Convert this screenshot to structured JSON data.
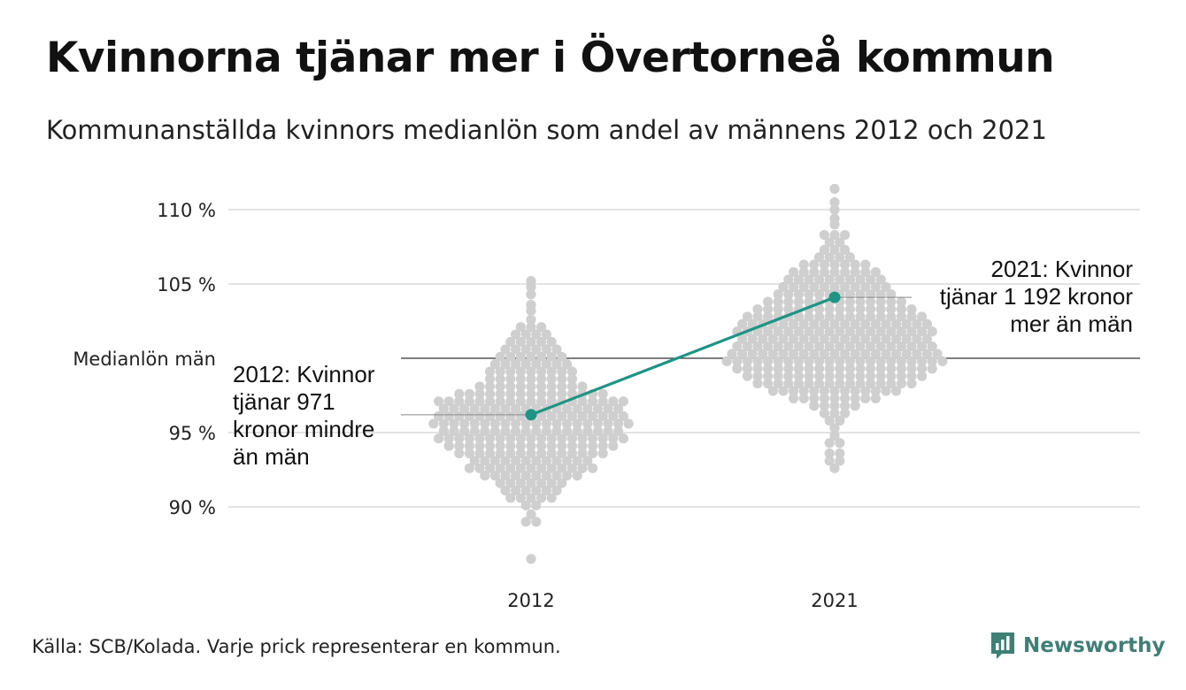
{
  "title": "Kvinnorna tjänar mer i Övertorneå kommun",
  "subtitle": "Kommunanställda kvinnors medianlön som andel av männens 2012 och 2021",
  "footer": "Källa: SCB/Kolada. Varje prick representerar en kommun.",
  "brand": "Newsworthy",
  "colors": {
    "dots": "#cfcfcf",
    "highlight": "#1e9485",
    "brand": "#3f7f76",
    "grid": "#e3e3e3",
    "baseline": "#333333"
  },
  "chart_data": {
    "type": "scatter",
    "categories": [
      "2012",
      "2021"
    ],
    "ylim": [
      86,
      112
    ],
    "yticks": [
      {
        "value": 90,
        "label": "90 %"
      },
      {
        "value": 95,
        "label": "95 %"
      },
      {
        "value": 105,
        "label": "105 %"
      },
      {
        "value": 110,
        "label": "110 %"
      }
    ],
    "reference_line": {
      "value": 100,
      "label": "Medianlön män"
    },
    "highlight": {
      "name": "Övertorneå",
      "values": [
        96.2,
        104.1
      ],
      "annotations": [
        {
          "category": "2012",
          "lines": [
            "2012: Kvinnor",
            "tjänar 971",
            "kronor mindre",
            "än män"
          ]
        },
        {
          "category": "2021",
          "lines": [
            "2021: Kvinnor",
            "tjänar 1 192 kronor",
            "mer än män"
          ]
        }
      ]
    },
    "swarm": [
      {
        "category": "2012",
        "rows": [
          {
            "y": 86.5,
            "n": 1
          },
          {
            "y": 89.0,
            "n": 2
          },
          {
            "y": 89.5,
            "n": 1
          },
          {
            "y": 90.1,
            "n": 2
          },
          {
            "y": 90.6,
            "n": 5
          },
          {
            "y": 91.1,
            "n": 6
          },
          {
            "y": 91.6,
            "n": 7
          },
          {
            "y": 92.1,
            "n": 10
          },
          {
            "y": 92.6,
            "n": 13
          },
          {
            "y": 93.1,
            "n": 12
          },
          {
            "y": 93.6,
            "n": 15
          },
          {
            "y": 94.1,
            "n": 17
          },
          {
            "y": 94.6,
            "n": 19
          },
          {
            "y": 95.1,
            "n": 18
          },
          {
            "y": 95.6,
            "n": 20
          },
          {
            "y": 96.1,
            "n": 19
          },
          {
            "y": 96.6,
            "n": 18
          },
          {
            "y": 97.1,
            "n": 19
          },
          {
            "y": 97.6,
            "n": 15
          },
          {
            "y": 98.1,
            "n": 11
          },
          {
            "y": 98.6,
            "n": 9
          },
          {
            "y": 99.1,
            "n": 9
          },
          {
            "y": 99.6,
            "n": 8
          },
          {
            "y": 100.1,
            "n": 7
          },
          {
            "y": 100.6,
            "n": 6
          },
          {
            "y": 101.1,
            "n": 5
          },
          {
            "y": 101.6,
            "n": 4
          },
          {
            "y": 102.1,
            "n": 3
          },
          {
            "y": 102.6,
            "n": 1
          },
          {
            "y": 103.2,
            "n": 1
          },
          {
            "y": 103.6,
            "n": 1
          },
          {
            "y": 104.3,
            "n": 1
          },
          {
            "y": 104.8,
            "n": 1
          },
          {
            "y": 105.2,
            "n": 1
          }
        ]
      },
      {
        "category": "2021",
        "rows": [
          {
            "y": 92.6,
            "n": 1
          },
          {
            "y": 93.1,
            "n": 2
          },
          {
            "y": 93.6,
            "n": 2
          },
          {
            "y": 94.3,
            "n": 2
          },
          {
            "y": 94.8,
            "n": 1
          },
          {
            "y": 95.3,
            "n": 1
          },
          {
            "y": 95.8,
            "n": 2
          },
          {
            "y": 96.3,
            "n": 3
          },
          {
            "y": 96.8,
            "n": 5
          },
          {
            "y": 97.3,
            "n": 9
          },
          {
            "y": 97.8,
            "n": 13
          },
          {
            "y": 98.3,
            "n": 16
          },
          {
            "y": 98.8,
            "n": 18
          },
          {
            "y": 99.3,
            "n": 20
          },
          {
            "y": 99.8,
            "n": 22
          },
          {
            "y": 100.3,
            "n": 21
          },
          {
            "y": 100.8,
            "n": 20
          },
          {
            "y": 101.3,
            "n": 19
          },
          {
            "y": 101.8,
            "n": 20
          },
          {
            "y": 102.3,
            "n": 19
          },
          {
            "y": 102.8,
            "n": 18
          },
          {
            "y": 103.3,
            "n": 16
          },
          {
            "y": 103.8,
            "n": 14
          },
          {
            "y": 104.3,
            "n": 12
          },
          {
            "y": 104.8,
            "n": 11
          },
          {
            "y": 105.3,
            "n": 10
          },
          {
            "y": 105.8,
            "n": 9
          },
          {
            "y": 106.3,
            "n": 7
          },
          {
            "y": 106.8,
            "n": 4
          },
          {
            "y": 107.3,
            "n": 3
          },
          {
            "y": 107.8,
            "n": 2
          },
          {
            "y": 108.3,
            "n": 3
          },
          {
            "y": 109.0,
            "n": 1
          },
          {
            "y": 109.4,
            "n": 1
          },
          {
            "y": 110.0,
            "n": 1
          },
          {
            "y": 110.5,
            "n": 1
          },
          {
            "y": 111.4,
            "n": 1
          }
        ]
      }
    ]
  }
}
